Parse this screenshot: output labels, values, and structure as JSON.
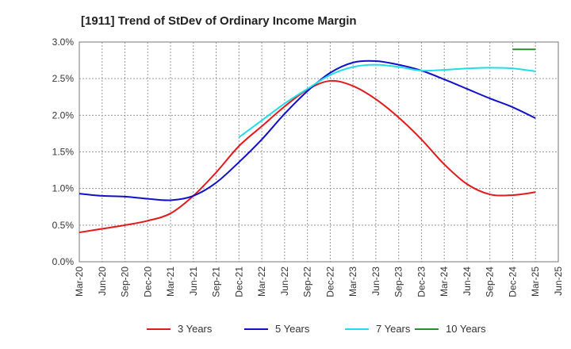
{
  "chart_data": {
    "type": "line",
    "title": "[1911]  Trend of StDev of Ordinary Income Margin",
    "xlabel": "",
    "ylabel": "",
    "ylim": [
      0,
      3.0
    ],
    "y_ticks": [
      "0.0%",
      "0.5%",
      "1.0%",
      "1.5%",
      "2.0%",
      "2.5%",
      "3.0%"
    ],
    "y_tick_values": [
      0,
      0.5,
      1.0,
      1.5,
      2.0,
      2.5,
      3.0
    ],
    "x_ticks": [
      "Mar-20",
      "Jun-20",
      "Sep-20",
      "Dec-20",
      "Mar-21",
      "Jun-21",
      "Sep-21",
      "Dec-21",
      "Mar-22",
      "Jun-22",
      "Sep-22",
      "Dec-22",
      "Mar-23",
      "Jun-23",
      "Sep-23",
      "Dec-23",
      "Mar-24",
      "Jun-24",
      "Sep-24",
      "Dec-24",
      "Mar-25",
      "Jun-25"
    ],
    "grid": true,
    "legend_position": "bottom",
    "series": [
      {
        "name": "3 Years",
        "color": "#e31a1c",
        "x": [
          "Mar-20",
          "Jun-20",
          "Sep-20",
          "Dec-20",
          "Mar-21",
          "Jun-21",
          "Sep-21",
          "Dec-21",
          "Mar-22",
          "Jun-22",
          "Sep-22",
          "Dec-22",
          "Mar-23",
          "Jun-23",
          "Sep-23",
          "Dec-23",
          "Mar-24",
          "Jun-24",
          "Sep-24",
          "Dec-24",
          "Mar-25"
        ],
        "values": [
          0.4,
          0.45,
          0.5,
          0.56,
          0.66,
          0.9,
          1.22,
          1.58,
          1.85,
          2.12,
          2.35,
          2.47,
          2.4,
          2.22,
          1.97,
          1.67,
          1.33,
          1.06,
          0.92,
          0.91,
          0.95
        ]
      },
      {
        "name": "5 Years",
        "color": "#1010c8",
        "x": [
          "Mar-20",
          "Jun-20",
          "Sep-20",
          "Dec-20",
          "Mar-21",
          "Jun-21",
          "Sep-21",
          "Dec-21",
          "Mar-22",
          "Jun-22",
          "Sep-22",
          "Dec-22",
          "Mar-23",
          "Jun-23",
          "Sep-23",
          "Dec-23",
          "Mar-24",
          "Jun-24",
          "Sep-24",
          "Dec-24",
          "Mar-25"
        ],
        "values": [
          0.93,
          0.9,
          0.89,
          0.86,
          0.84,
          0.9,
          1.08,
          1.36,
          1.67,
          2.02,
          2.33,
          2.58,
          2.72,
          2.74,
          2.69,
          2.61,
          2.49,
          2.36,
          2.23,
          2.11,
          1.96
        ]
      },
      {
        "name": "7 Years",
        "color": "#22dde6",
        "x": [
          "Dec-21",
          "Mar-22",
          "Jun-22",
          "Sep-22",
          "Dec-22",
          "Mar-23",
          "Jun-23",
          "Sep-23",
          "Dec-23",
          "Mar-24",
          "Jun-24",
          "Sep-24",
          "Dec-24",
          "Mar-25"
        ],
        "values": [
          1.7,
          1.93,
          2.16,
          2.36,
          2.55,
          2.66,
          2.69,
          2.66,
          2.61,
          2.62,
          2.64,
          2.65,
          2.64,
          2.6
        ]
      },
      {
        "name": "10 Years",
        "color": "#2e8b2e",
        "x": [
          "Dec-24",
          "Mar-25"
        ],
        "values": [
          2.9,
          2.9
        ]
      }
    ]
  }
}
